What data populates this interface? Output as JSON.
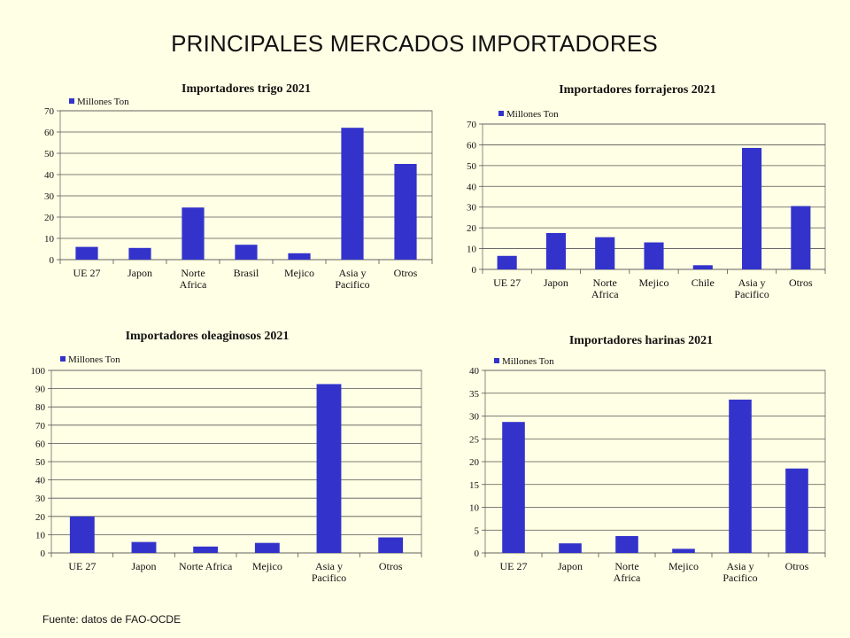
{
  "page": {
    "title": "PRINCIPALES MERCADOS IMPORTADORES",
    "source": "Fuente: datos de  FAO-OCDE",
    "bar_color": "#3333CC",
    "background": "#FFFFE5"
  },
  "chart_data": [
    {
      "type": "bar",
      "title": "Importadores trigo 2021",
      "categories": [
        [
          "UE 27"
        ],
        [
          "Japon"
        ],
        [
          "Norte",
          "Africa"
        ],
        [
          "Brasil"
        ],
        [
          "Mejico"
        ],
        [
          "Asia y",
          "Pacifico"
        ],
        [
          "Otros"
        ]
      ],
      "series": [
        {
          "name": "Millones Ton",
          "values": [
            6,
            5.5,
            24.5,
            7,
            3,
            62,
            45
          ]
        }
      ],
      "ylim": [
        0,
        70
      ],
      "yticks": [
        0,
        10,
        20,
        30,
        40,
        50,
        60,
        70
      ],
      "grid": true,
      "legend": "top-left"
    },
    {
      "type": "bar",
      "title": "Importadores forrajeros 2021",
      "categories": [
        [
          "UE 27"
        ],
        [
          "Japon"
        ],
        [
          "Norte",
          "Africa"
        ],
        [
          "Mejico"
        ],
        [
          "Chile"
        ],
        [
          "Asia y",
          "Pacifico"
        ],
        [
          "Otros"
        ]
      ],
      "series": [
        {
          "name": "Millones Ton",
          "values": [
            6.5,
            17.5,
            15.5,
            13,
            2,
            58.5,
            30.5
          ]
        }
      ],
      "ylim": [
        0,
        70
      ],
      "yticks": [
        0,
        10,
        20,
        30,
        40,
        50,
        60,
        70
      ],
      "grid": true,
      "legend": "top-left"
    },
    {
      "type": "bar",
      "title": "Importadores oleaginosos 2021",
      "categories": [
        [
          "UE 27"
        ],
        [
          "Japon"
        ],
        [
          "Norte Africa"
        ],
        [
          "Mejico"
        ],
        [
          "Asia y",
          "Pacifico"
        ],
        [
          "Otros"
        ]
      ],
      "series": [
        {
          "name": "Millones Ton",
          "values": [
            20,
            6,
            3.5,
            5.5,
            92.5,
            8.5
          ]
        }
      ],
      "ylim": [
        0,
        100
      ],
      "yticks": [
        0,
        10,
        20,
        30,
        40,
        50,
        60,
        70,
        80,
        90,
        100
      ],
      "grid": true,
      "legend": "top-left"
    },
    {
      "type": "bar",
      "title": "Importadores harinas 2021",
      "categories": [
        [
          "UE 27"
        ],
        [
          "Japon"
        ],
        [
          "Norte",
          "Africa"
        ],
        [
          "Mejico"
        ],
        [
          "Asia y",
          "Pacifico"
        ],
        [
          "Otros"
        ]
      ],
      "series": [
        {
          "name": "Millones Ton",
          "values": [
            28.7,
            2.1,
            3.7,
            0.9,
            33.6,
            18.5
          ]
        }
      ],
      "ylim": [
        0,
        40
      ],
      "yticks": [
        0,
        5,
        10,
        15,
        20,
        25,
        30,
        35,
        40
      ],
      "grid": true,
      "legend": "top-left"
    }
  ]
}
